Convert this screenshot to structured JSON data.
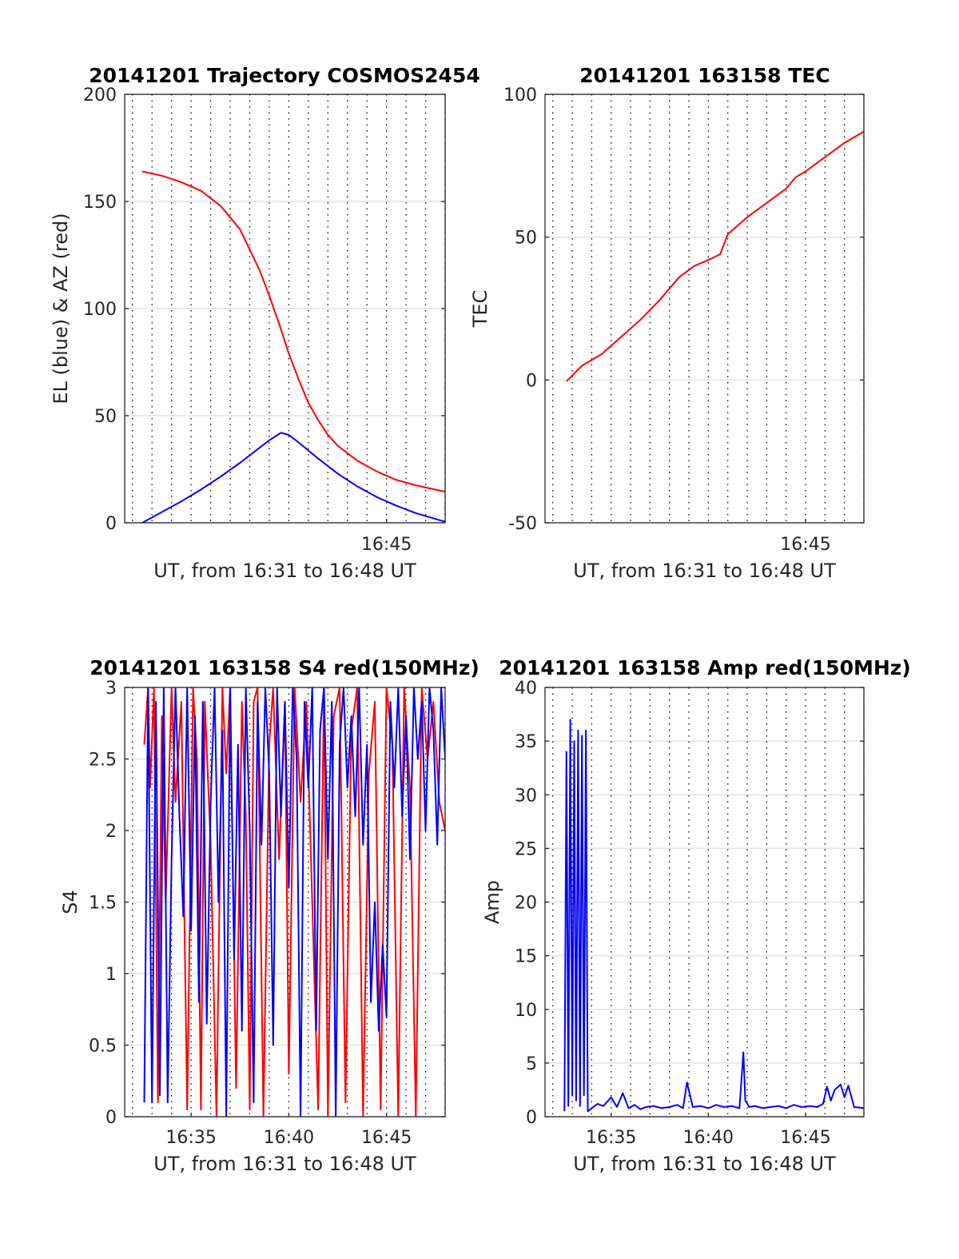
{
  "chart_data": [
    {
      "type": "line",
      "title": "20141201 Trajectory COSMOS2454",
      "xlabel": "UT, from 16:31 to 16:48 UT",
      "ylabel": "EL (blue) & AZ (red)",
      "xlim": [
        31.6,
        48.0
      ],
      "ylim": [
        0,
        200
      ],
      "yticks": [
        0,
        50,
        100,
        150,
        200
      ],
      "xticks": [
        {
          "x": 45,
          "label": "16:45"
        }
      ],
      "grid": true,
      "colors": {
        "EL": "#0000ff",
        "AZ": "#ff0000"
      },
      "series": [
        {
          "key": "AZ",
          "color": "#ff0000",
          "x": [
            32.5,
            33.5,
            34.5,
            35.5,
            36.5,
            37.5,
            38.5,
            39.0,
            39.5,
            40.0,
            40.5,
            41.0,
            41.5,
            42.0,
            42.5,
            43.5,
            44.5,
            45.5,
            46.5,
            47.5,
            48.0
          ],
          "y": [
            164,
            162,
            159,
            155,
            148,
            137,
            118,
            106,
            93,
            79,
            67,
            56,
            48,
            41,
            36,
            29,
            24,
            20,
            17.5,
            15.5,
            14.5
          ]
        },
        {
          "key": "EL",
          "color": "#0000ff",
          "x": [
            32.5,
            33.5,
            34.5,
            35.5,
            36.5,
            37.5,
            38.5,
            39.0,
            39.6,
            40.0,
            40.5,
            41.5,
            42.5,
            43.5,
            44.5,
            45.5,
            46.5,
            47.5,
            48.0
          ],
          "y": [
            0,
            5,
            10,
            15.5,
            21.5,
            28,
            35,
            38.5,
            42,
            41,
            37.5,
            30,
            23,
            17,
            12,
            8,
            4.5,
            1.8,
            0.5
          ]
        }
      ]
    },
    {
      "type": "line",
      "title": "20141201 163158 TEC",
      "xlabel": "UT, from 16:31 to 16:48 UT",
      "ylabel": "TEC",
      "xlim": [
        31.6,
        48.0
      ],
      "ylim": [
        -50,
        100
      ],
      "yticks": [
        -50,
        0,
        50,
        100
      ],
      "xticks": [
        {
          "x": 45,
          "label": "16:45"
        }
      ],
      "grid": true,
      "series": [
        {
          "key": "TEC",
          "color": "#ff0000",
          "x": [
            32.7,
            33.5,
            34.5,
            35.5,
            36.5,
            37.5,
            38.5,
            39.3,
            40.0,
            40.6,
            41.0,
            41.5,
            42.0,
            43.0,
            44.0,
            44.5,
            45.0,
            46.0,
            47.0,
            48.0
          ],
          "y": [
            -0.5,
            5,
            9,
            15,
            21,
            28,
            36,
            40,
            42,
            44,
            51,
            54,
            57,
            62,
            67,
            71,
            73,
            78,
            83,
            87
          ]
        }
      ]
    },
    {
      "type": "line",
      "title": "20141201 163158 S4 red(150MHz)",
      "xlabel": "UT, from 16:31 to 16:48 UT",
      "ylabel": "S4",
      "xlim": [
        31.6,
        48.0
      ],
      "ylim": [
        0,
        3
      ],
      "yticks": [
        0,
        0.5,
        1,
        1.5,
        2,
        2.5,
        3
      ],
      "xticks": [
        {
          "x": 35,
          "label": "16:35"
        },
        {
          "x": 40,
          "label": "16:40"
        },
        {
          "x": 45,
          "label": "16:45"
        }
      ],
      "grid": true,
      "series": [
        {
          "key": "S4-red",
          "color": "#ff0000",
          "x": [
            32.6,
            32.8,
            32.9,
            33.1,
            33.3,
            33.5,
            33.7,
            34.0,
            34.2,
            34.5,
            34.8,
            35.1,
            35.3,
            35.5,
            35.7,
            36.0,
            36.3,
            36.6,
            36.8,
            37.0,
            37.3,
            37.6,
            37.8,
            38.0,
            38.2,
            38.4,
            38.7,
            39.0,
            39.2,
            39.5,
            39.8,
            40.0,
            40.3,
            40.6,
            40.9,
            41.2,
            41.5,
            41.8,
            42.0,
            42.3,
            42.6,
            42.9,
            43.2,
            43.5,
            43.8,
            44.1,
            44.4,
            44.7,
            45.0,
            45.3,
            45.6,
            45.9,
            46.2,
            46.5,
            46.8,
            47.1,
            47.4,
            47.7,
            48.0
          ],
          "y": [
            2.6,
            3.0,
            2.3,
            3.0,
            0.1,
            2.8,
            1.5,
            3.0,
            2.2,
            2.9,
            0.05,
            3.0,
            2.5,
            0.05,
            2.9,
            1.9,
            0.0,
            3.0,
            2.4,
            3.0,
            0.2,
            2.9,
            2.1,
            0.05,
            2.9,
            3.0,
            0.0,
            2.6,
            3.0,
            1.8,
            2.9,
            0.3,
            3.0,
            2.2,
            2.9,
            1.5,
            0.05,
            3.0,
            0.0,
            2.8,
            3.0,
            0.1,
            2.7,
            3.0,
            0.0,
            2.4,
            2.9,
            0.05,
            3.0,
            2.6,
            0.0,
            3.0,
            2.3,
            0.0,
            3.0,
            2.5,
            2.9,
            2.2,
            2.0
          ]
        },
        {
          "key": "S4-blue",
          "color": "#0000ff",
          "x": [
            32.6,
            32.8,
            33.0,
            33.2,
            33.4,
            33.6,
            33.8,
            34.0,
            34.2,
            34.4,
            34.6,
            34.8,
            35.0,
            35.2,
            35.4,
            35.6,
            35.8,
            36.0,
            36.2,
            36.4,
            36.6,
            36.8,
            37.0,
            37.2,
            37.4,
            37.6,
            37.8,
            38.0,
            38.2,
            38.4,
            38.6,
            38.8,
            39.0,
            39.2,
            39.4,
            39.6,
            39.8,
            40.0,
            40.2,
            40.4,
            40.6,
            40.8,
            41.0,
            41.2,
            41.4,
            41.6,
            41.8,
            42.0,
            42.2,
            42.4,
            42.6,
            42.8,
            43.0,
            43.2,
            43.4,
            43.6,
            43.8,
            44.0,
            44.2,
            44.4,
            44.6,
            44.8,
            45.0,
            45.2,
            45.4,
            45.6,
            45.8,
            46.0,
            46.2,
            46.4,
            46.6,
            46.8,
            47.0,
            47.2,
            47.4,
            47.6,
            47.8,
            48.0
          ],
          "y": [
            0.1,
            3.0,
            0.1,
            2.9,
            0.15,
            3.0,
            0.1,
            1.8,
            3.0,
            2.1,
            1.4,
            3.0,
            1.3,
            2.8,
            0.8,
            2.9,
            0.65,
            2.2,
            3.0,
            1.5,
            2.7,
            0.0,
            3.0,
            1.1,
            2.6,
            0.6,
            3.0,
            2.0,
            0.1,
            2.9,
            1.9,
            3.0,
            2.4,
            0.5,
            3.0,
            2.1,
            2.9,
            1.6,
            3.0,
            2.5,
            0.0,
            2.9,
            2.3,
            3.0,
            0.6,
            2.7,
            3.0,
            1.8,
            2.9,
            0.0,
            2.6,
            3.0,
            2.3,
            2.8,
            2.1,
            3.0,
            1.9,
            2.6,
            0.8,
            1.5,
            0.6,
            1.2,
            0.7,
            2.9,
            2.3,
            3.0,
            2.1,
            2.8,
            1.8,
            3.0,
            2.5,
            2.9,
            2.0,
            3.0,
            2.7,
            1.9,
            3.0,
            2.5
          ]
        }
      ]
    },
    {
      "type": "line",
      "title": "20141201 163158 Amp red(150MHz)",
      "xlabel": "UT, from 16:31 to 16:48 UT",
      "ylabel": "Amp",
      "xlim": [
        31.6,
        48.0
      ],
      "ylim": [
        0,
        40
      ],
      "yticks": [
        0,
        5,
        10,
        15,
        20,
        25,
        30,
        35,
        40
      ],
      "xticks": [
        {
          "x": 35,
          "label": "16:35"
        },
        {
          "x": 40,
          "label": "16:40"
        },
        {
          "x": 45,
          "label": "16:45"
        }
      ],
      "grid": true,
      "series": [
        {
          "key": "Amp",
          "color": "#0000ff",
          "x": [
            32.6,
            32.7,
            32.8,
            32.9,
            33.0,
            33.1,
            33.2,
            33.3,
            33.4,
            33.5,
            33.6,
            33.7,
            33.8,
            34.0,
            34.3,
            34.6,
            35.0,
            35.3,
            35.6,
            35.9,
            36.2,
            36.5,
            36.8,
            37.2,
            37.6,
            38.0,
            38.4,
            38.7,
            38.9,
            39.2,
            39.6,
            40.0,
            40.4,
            40.8,
            41.2,
            41.6,
            41.8,
            41.9,
            42.1,
            42.4,
            42.8,
            43.2,
            43.6,
            44.0,
            44.4,
            44.8,
            45.2,
            45.6,
            45.9,
            46.1,
            46.3,
            46.5,
            46.8,
            47.0,
            47.2,
            47.5,
            48.0
          ],
          "y": [
            0.5,
            34,
            1,
            37,
            2,
            35,
            1.5,
            36,
            1,
            35.5,
            2,
            36,
            0.5,
            0.8,
            1.2,
            1.0,
            1.8,
            0.9,
            2.2,
            0.8,
            1.1,
            0.7,
            0.9,
            1.0,
            0.8,
            0.9,
            1.1,
            0.8,
            3.2,
            0.9,
            1.0,
            0.8,
            1.1,
            0.9,
            1.0,
            0.8,
            6.0,
            1.5,
            0.9,
            1.0,
            0.8,
            0.9,
            1.0,
            0.8,
            1.1,
            0.9,
            1.0,
            0.9,
            1.2,
            2.8,
            1.5,
            2.5,
            3.0,
            1.8,
            2.9,
            0.9,
            0.8
          ]
        }
      ]
    }
  ]
}
